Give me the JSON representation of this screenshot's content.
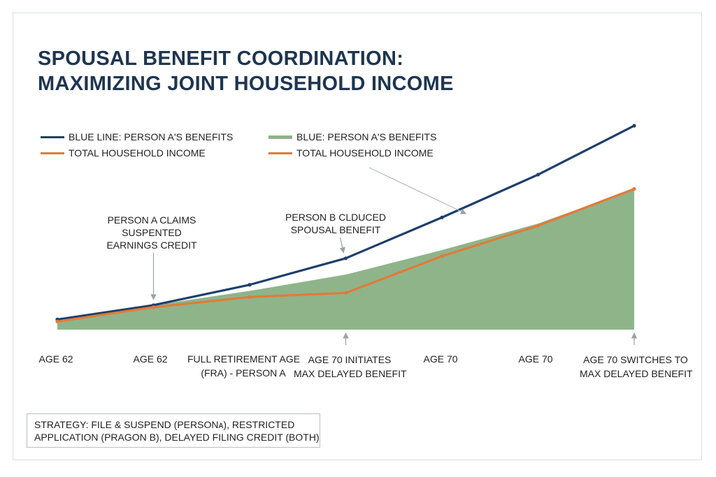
{
  "chart_data": {
    "type": "line",
    "title": "SPOUSAL BENEFIT COORDINATION:",
    "title_line2": "MAXIMIZING JOINT HOUSEHOLD INCOME",
    "legend": [
      {
        "label": "BLUE LINE: PERSON A'S BENEFITS",
        "color": "#1f3f6b",
        "kind": "line"
      },
      {
        "label": "TOTAL HOUSEHOLD INCOME",
        "color": "#e07b39",
        "kind": "line"
      },
      {
        "label": "BLUE: PERSON A'S BENEFITS",
        "color": "#8fb48a",
        "kind": "area"
      },
      {
        "label": "TOTAL HOUSEHOLD INCOME",
        "color": "#e07b39",
        "kind": "line"
      }
    ],
    "ylim": [
      0,
      100
    ],
    "x_labels": [
      {
        "x": 0,
        "lines": [
          "AGE 62"
        ]
      },
      {
        "x": 1,
        "lines": [
          "AGE 62"
        ]
      },
      {
        "x": 2,
        "lines": [
          "FULL RETIREMENT AGE",
          "(FRA) - PERSON A"
        ]
      },
      {
        "x": 3,
        "lines": [
          "AGE 70 INITIATES",
          "MAX DELAYED BENEFIT"
        ]
      },
      {
        "x": 4,
        "lines": [
          "AGE 70"
        ]
      },
      {
        "x": 5,
        "lines": [
          "AGE 70"
        ]
      },
      {
        "x": 6,
        "lines": [
          "AGE 70 SWITCHES TO",
          "MAX DELAYED BENEFIT"
        ]
      }
    ],
    "series": [
      {
        "color": "#1f3f6b",
        "kind": "line",
        "x": [
          0,
          1,
          2,
          3,
          4,
          5,
          6
        ],
        "y": [
          5,
          12,
          22,
          35,
          55,
          76,
          100
        ]
      },
      {
        "color": "#e07b39",
        "kind": "line",
        "x": [
          0,
          1,
          2,
          3,
          4,
          5,
          6
        ],
        "y": [
          4,
          11,
          16,
          18,
          36,
          51,
          69
        ]
      },
      {
        "color": "#8fb48a",
        "kind": "area",
        "x": [
          0,
          1,
          2,
          3,
          4,
          5,
          6
        ],
        "y": [
          4,
          12,
          19,
          27,
          39,
          52,
          69
        ]
      }
    ],
    "annotations": [
      {
        "lines": [
          "PERSON A CLAIMS",
          "SUSPENTED",
          "EARNINGS CREDIT"
        ],
        "x": 1
      },
      {
        "lines": [
          "PERSON B CLDUCED",
          "SPOUSAL BENEFIT"
        ],
        "x": 3
      },
      {
        "lines": [],
        "x": 4.2
      },
      {
        "lines": [],
        "x": 3
      },
      {
        "lines": [],
        "x": 6
      }
    ]
  },
  "strategy": {
    "line1": "STRATEGY: FILE & SUSPEND (PERSONᴀ), RESTRICTED",
    "line2": "APPLICATION (PRAGON B), DELAYED FILING CREDIT (BOTH)"
  }
}
